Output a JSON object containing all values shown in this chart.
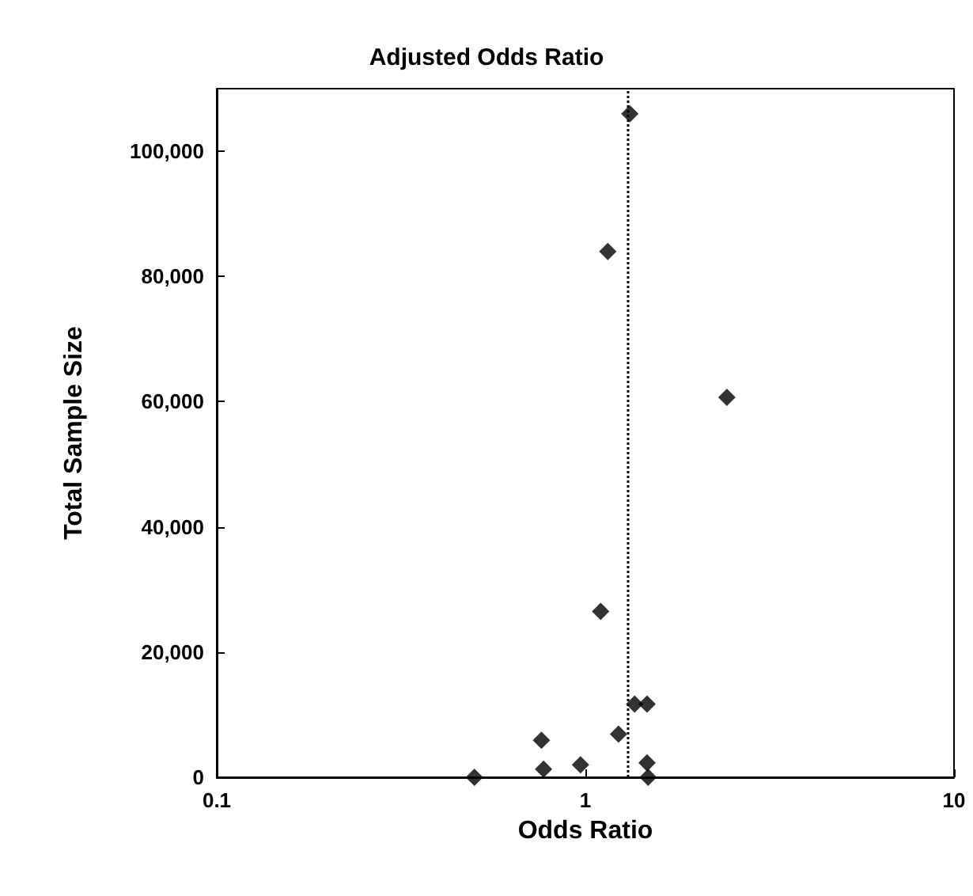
{
  "chart_data": {
    "type": "scatter",
    "title": "Adjusted Odds Ratio",
    "xlabel": "Odds Ratio",
    "ylabel": "Total Sample Size",
    "log": "x",
    "marker": "diamond",
    "x": [
      0.5,
      0.76,
      0.77,
      0.97,
      1.1,
      1.15,
      1.23,
      1.32,
      1.36,
      1.47,
      1.47,
      1.48,
      2.42
    ],
    "series": [
      {
        "color": "#000000",
        "values": [
          0,
          5900,
          1300,
          2000,
          26500,
          84000,
          6900,
          106000,
          11700,
          11700,
          2300,
          0,
          60700
        ]
      }
    ],
    "xlim": [
      0.1,
      10
    ],
    "xticks": [
      0.1,
      1,
      10
    ],
    "ylim": [
      0,
      110000
    ],
    "yticks": [
      {
        "value": 0,
        "label": "0"
      },
      {
        "value": 20000,
        "label": "20,000"
      },
      {
        "value": 40000,
        "label": "40,000"
      },
      {
        "value": 60000,
        "label": "60,000"
      },
      {
        "value": 80000,
        "label": "80,000"
      },
      {
        "value": 100000,
        "label": "100,000"
      }
    ],
    "ref_lines": [
      {
        "axis": "x",
        "value": 1.3,
        "line_style": "dotted",
        "color": "#000000"
      }
    ]
  }
}
